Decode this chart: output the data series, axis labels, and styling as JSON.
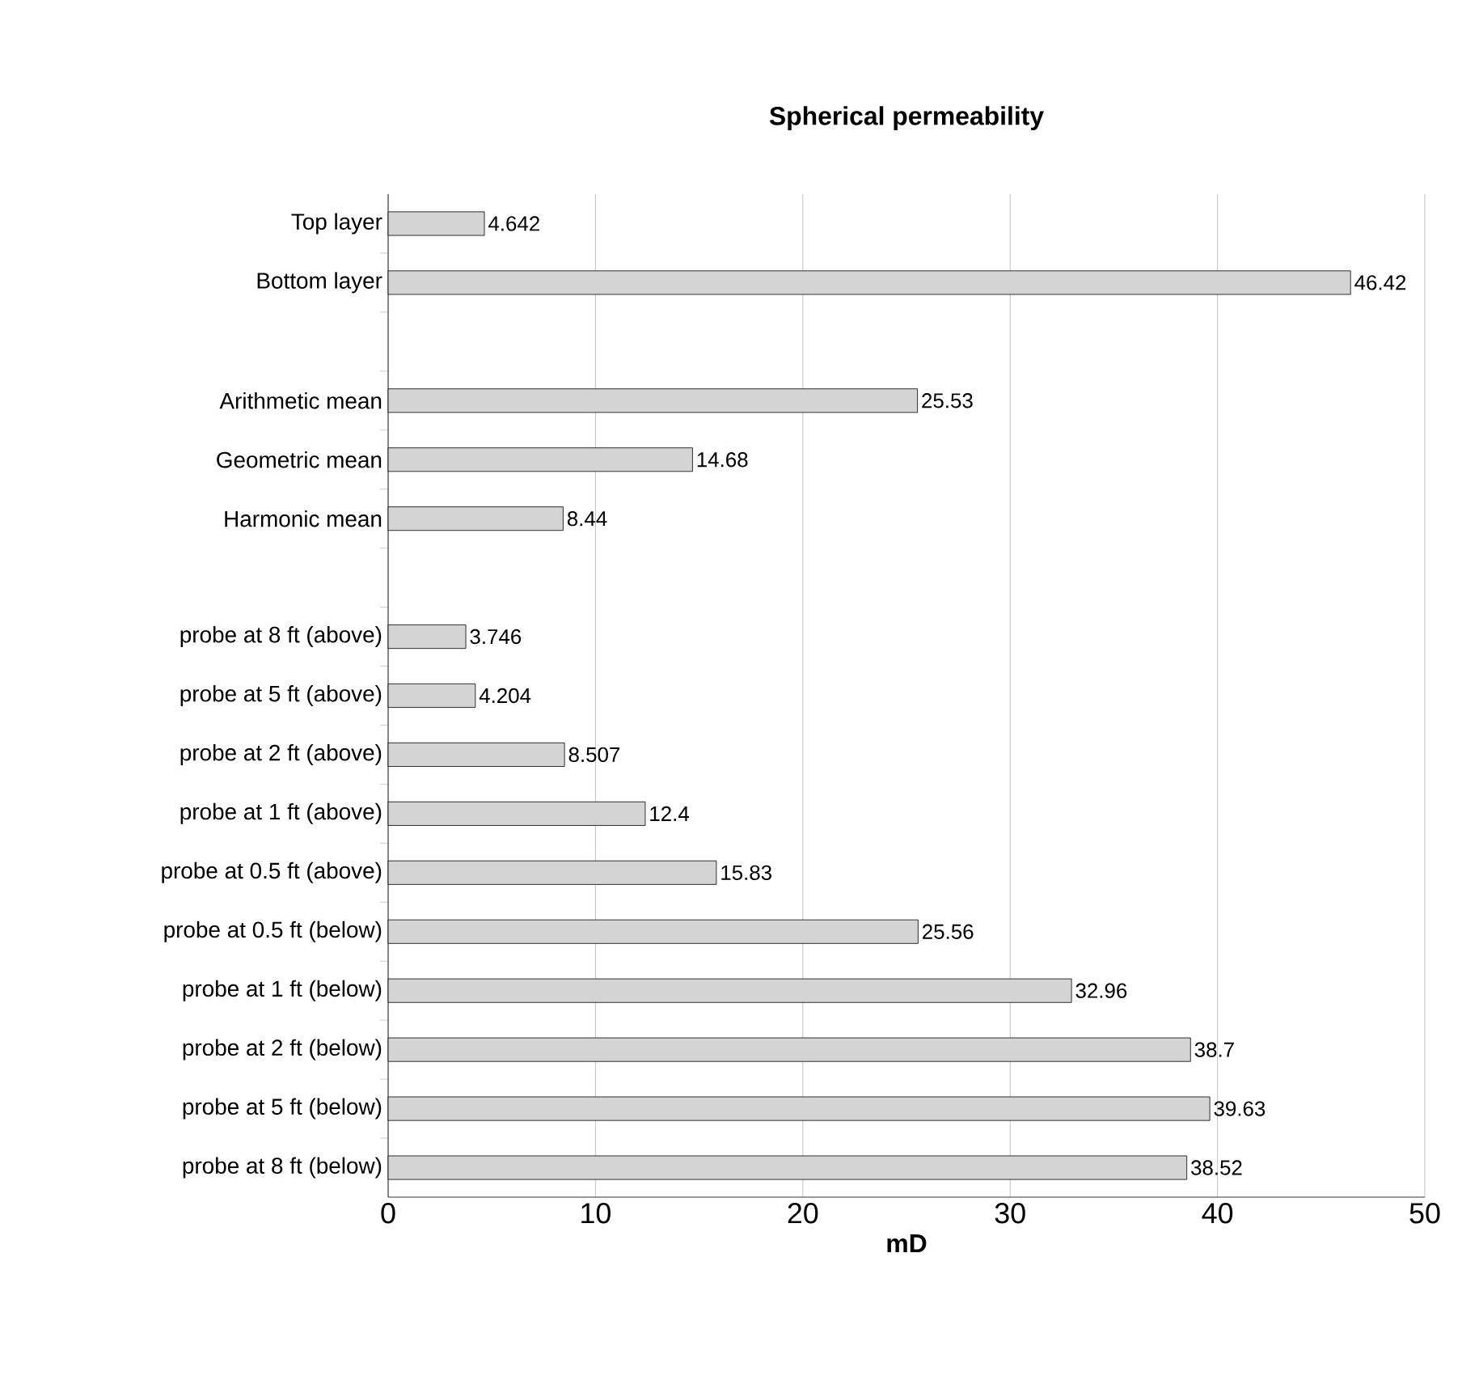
{
  "chart_data": {
    "type": "bar",
    "orientation": "horizontal",
    "title": "Spherical permeability",
    "xlabel": "mD",
    "categories": [
      "Top layer",
      "Bottom layer",
      null,
      "Arithmetic mean",
      "Geometric mean",
      "Harmonic mean",
      null,
      "probe at 8 ft (above)",
      "probe at 5 ft (above)",
      "probe at 2 ft (above)",
      "probe at 1 ft (above)",
      "probe at 0.5 ft (above)",
      "probe at 0.5 ft (below)",
      "probe at 1 ft (below)",
      "probe at 2 ft (below)",
      "probe at 5 ft (below)",
      "probe at 8 ft (below)"
    ],
    "values": [
      4.642,
      46.42,
      null,
      25.53,
      14.68,
      8.44,
      null,
      3.746,
      4.204,
      8.507,
      12.4,
      15.83,
      25.56,
      32.96,
      38.7,
      39.63,
      38.52
    ],
    "color": "#d4d4d4",
    "data_labels": true,
    "xlim": [
      0,
      50
    ],
    "xticks": [
      0,
      10,
      20,
      30,
      40,
      50
    ],
    "grid": "x"
  }
}
